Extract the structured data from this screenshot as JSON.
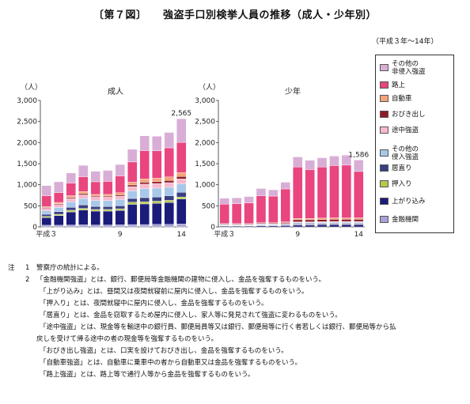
{
  "title": "〔第７図〕　　強盗手口別検挙人員の推移（成人・少年別）",
  "period": "（平成３年～14年）",
  "chart_data": [
    {
      "type": "bar",
      "stacked": true,
      "title": "成人",
      "yunit": "（人）",
      "ylim": [
        0,
        3000
      ],
      "yticks": [
        "0",
        "500",
        "1,000",
        "1,500",
        "2,000",
        "2,500",
        "3,000"
      ],
      "ytick_values": [
        0,
        500,
        1000,
        1500,
        2000,
        2500,
        3000
      ],
      "x_tick_labels": [
        "平成３",
        "9",
        "14"
      ],
      "x_tick_index": [
        0,
        6,
        11
      ],
      "categories": [
        "3",
        "4",
        "5",
        "6",
        "7",
        "8",
        "9",
        "10",
        "11",
        "12",
        "13",
        "14"
      ],
      "totals": [
        980,
        1080,
        1280,
        1460,
        1320,
        1340,
        1480,
        1840,
        2160,
        2150,
        2240,
        2565
      ],
      "last_label": "2,565",
      "series": [
        {
          "name": "金融機関",
          "values": [
            40,
            40,
            45,
            50,
            45,
            45,
            50,
            55,
            55,
            60,
            60,
            70
          ]
        },
        {
          "name": "上がり込み",
          "values": [
            180,
            230,
            310,
            350,
            330,
            330,
            340,
            480,
            490,
            500,
            520,
            590
          ]
        },
        {
          "name": "押入り",
          "values": [
            30,
            30,
            40,
            40,
            40,
            40,
            40,
            50,
            50,
            50,
            50,
            50
          ]
        },
        {
          "name": "居直り",
          "values": [
            50,
            60,
            70,
            80,
            70,
            70,
            70,
            90,
            100,
            100,
            110,
            110
          ]
        },
        {
          "name": "その他の侵入強盗",
          "values": [
            80,
            100,
            130,
            150,
            140,
            140,
            150,
            180,
            210,
            210,
            200,
            200
          ]
        },
        {
          "name": "途中強盗",
          "values": [
            60,
            70,
            80,
            90,
            80,
            80,
            80,
            100,
            110,
            110,
            110,
            120
          ]
        },
        {
          "name": "おびき出し",
          "values": [
            20,
            20,
            25,
            30,
            25,
            25,
            30,
            40,
            45,
            45,
            50,
            55
          ]
        },
        {
          "name": "自動車",
          "values": [
            20,
            30,
            40,
            50,
            40,
            40,
            50,
            65,
            80,
            80,
            85,
            90
          ]
        },
        {
          "name": "路上",
          "values": [
            260,
            230,
            300,
            350,
            300,
            310,
            400,
            480,
            670,
            650,
            690,
            720
          ]
        },
        {
          "name": "その他の非侵入強盗",
          "values": [
            240,
            260,
            240,
            270,
            250,
            260,
            270,
            300,
            350,
            345,
            365,
            560
          ]
        }
      ]
    },
    {
      "type": "bar",
      "stacked": true,
      "title": "少年",
      "yunit": "（人）",
      "ylim": [
        0,
        3000
      ],
      "yticks": [
        "0",
        "500",
        "1,000",
        "1,500",
        "2,000",
        "2,500",
        "3,000"
      ],
      "ytick_values": [
        0,
        500,
        1000,
        1500,
        2000,
        2500,
        3000
      ],
      "x_tick_labels": [
        "平成３",
        "9",
        "14"
      ],
      "x_tick_index": [
        0,
        6,
        11
      ],
      "categories": [
        "3",
        "4",
        "5",
        "6",
        "7",
        "8",
        "9",
        "10",
        "11",
        "12",
        "13",
        "14"
      ],
      "totals": [
        680,
        690,
        720,
        910,
        880,
        1060,
        1660,
        1580,
        1640,
        1680,
        1700,
        1586
      ],
      "last_label": "1,586",
      "series": [
        {
          "name": "金融機関",
          "values": [
            0,
            0,
            0,
            0,
            0,
            0,
            0,
            0,
            0,
            0,
            0,
            0
          ]
        },
        {
          "name": "上がり込み",
          "values": [
            20,
            20,
            20,
            25,
            25,
            30,
            45,
            45,
            50,
            55,
            55,
            55
          ]
        },
        {
          "name": "押入り",
          "values": [
            5,
            5,
            5,
            5,
            5,
            5,
            10,
            10,
            10,
            10,
            10,
            10
          ]
        },
        {
          "name": "居直り",
          "values": [
            10,
            10,
            10,
            15,
            15,
            15,
            20,
            20,
            20,
            20,
            20,
            20
          ]
        },
        {
          "name": "その他の侵入強盗",
          "values": [
            10,
            10,
            10,
            15,
            15,
            15,
            25,
            25,
            25,
            25,
            25,
            25
          ]
        },
        {
          "name": "途中強盗",
          "values": [
            10,
            10,
            10,
            10,
            10,
            15,
            20,
            20,
            20,
            20,
            20,
            20
          ]
        },
        {
          "name": "おびき出し",
          "values": [
            15,
            15,
            15,
            20,
            20,
            25,
            50,
            50,
            50,
            50,
            50,
            50
          ]
        },
        {
          "name": "自動車",
          "values": [
            10,
            10,
            10,
            10,
            10,
            15,
            30,
            30,
            35,
            35,
            35,
            35
          ]
        },
        {
          "name": "路上",
          "values": [
            460,
            470,
            490,
            640,
            630,
            780,
            1220,
            1160,
            1210,
            1240,
            1250,
            1100
          ]
        },
        {
          "name": "その他の非侵入強盗",
          "values": [
            140,
            140,
            150,
            170,
            150,
            160,
            240,
            220,
            220,
            225,
            235,
            271
          ]
        }
      ]
    }
  ],
  "colors": {
    "金融機関": "#a7a3d6",
    "上がり込み": "#1b1b7a",
    "押入り": "#b7c84e",
    "居直り": "#3a3f82",
    "その他の侵入強盗": "#a8c8ea",
    "途中強盗": "#f7b9cf",
    "おびき出し": "#8e1c24",
    "自動車": "#f3a579",
    "路上": "#e9457f",
    "その他の非侵入強盗": "#d9aed6"
  },
  "legend": [
    {
      "key": "その他の非侵入強盗",
      "label": "その他の\n非侵入強盗"
    },
    {
      "key": "路上",
      "label": "路上"
    },
    {
      "key": "自動車",
      "label": "自動車"
    },
    {
      "key": "おびき出し",
      "label": "おびき出し"
    },
    {
      "key": "途中強盗",
      "label": "途中強盗"
    },
    {
      "key": "その他の侵入強盗",
      "label": "その他の\n侵入強盗"
    },
    {
      "key": "居直り",
      "label": "居直り"
    },
    {
      "key": "押入り",
      "label": "押入り"
    },
    {
      "key": "上がり込み",
      "label": "上がり込み"
    },
    {
      "key": "金融機関",
      "label": "金融機関"
    }
  ],
  "notes": {
    "label": "注",
    "items": [
      {
        "num": "1",
        "text": "警察庁の統計による。"
      },
      {
        "num": "2",
        "text": "「金融機関強盗」とは、銀行、郵便局等金融機関の建物に侵入し、金品を強奪するものをいう。"
      },
      {
        "num": "",
        "text": "「上がり込み」とは、昼間又は夜間就寝前に屋内に侵入し、金品を強奪するものをいう。"
      },
      {
        "num": "",
        "text": "「押入り」とは、夜間就寝中に屋内に侵入し、金品を強奪するものをいう。"
      },
      {
        "num": "",
        "text": "「居直り」とは、金品を窃取するため屋内に侵入し、家人等に発見されて強盗に変わるものをいう。"
      },
      {
        "num": "",
        "text": "「途中強盗」とは、現金等を輸送中の銀行員、郵便局員等又は銀行、郵便局等に行く者若しくは銀行、郵便局等から払"
      },
      {
        "num": "",
        "text": "戻しを受けて帰る途中の者の現金等を強奪するものをいう。"
      },
      {
        "num": "",
        "text": "「おびき出し強盗」とは、口実を設けておびき出し、金品を強奪するものをいう。"
      },
      {
        "num": "",
        "text": "「自動車強盗」とは、自動車に乗車中の者から自動車又は金品を強奪するものをいう。"
      },
      {
        "num": "",
        "text": "「路上強盗」とは、路上等で通行人等から金品を強奪するものをいう。"
      }
    ]
  }
}
